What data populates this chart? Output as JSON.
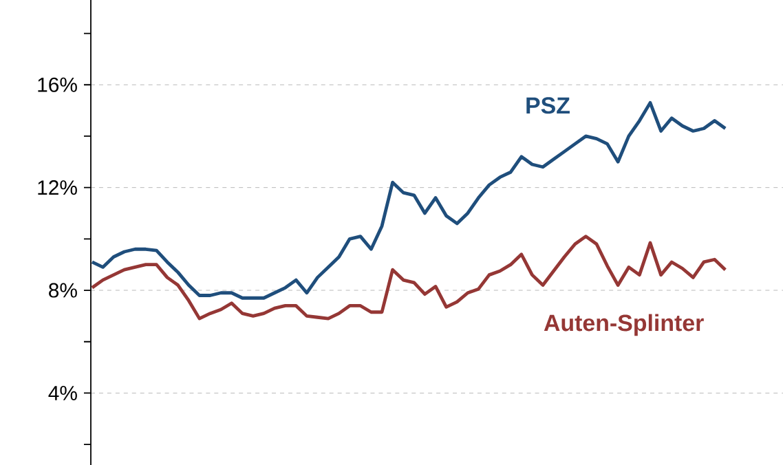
{
  "chart_data": {
    "type": "line",
    "categories": [
      null,
      null,
      null,
      null,
      null,
      null,
      null,
      null,
      null,
      null,
      null,
      null,
      null,
      null,
      null,
      null,
      null,
      null,
      null,
      null,
      null,
      null,
      null,
      null,
      null,
      null,
      null,
      null,
      null,
      null,
      null,
      null,
      null,
      null,
      null,
      null,
      null,
      null,
      null,
      null,
      null,
      null,
      null,
      null,
      null,
      null,
      null,
      null,
      null,
      null,
      null,
      null,
      null,
      null,
      null,
      null,
      null,
      null,
      null,
      null
    ],
    "series": [
      {
        "name": "PSZ",
        "color": "#1f4e7c",
        "values": [
          9.1,
          8.9,
          9.3,
          9.5,
          9.6,
          9.6,
          9.55,
          9.1,
          8.7,
          8.2,
          7.8,
          7.8,
          7.9,
          7.9,
          7.7,
          7.7,
          7.7,
          7.9,
          8.1,
          8.4,
          7.9,
          8.5,
          8.9,
          9.3,
          10.0,
          10.1,
          9.6,
          10.5,
          12.2,
          11.8,
          11.7,
          11.0,
          11.6,
          10.9,
          10.6,
          11.0,
          11.6,
          12.1,
          12.4,
          12.6,
          13.2,
          12.9,
          12.8,
          13.1,
          13.4,
          13.7,
          14.0,
          13.9,
          13.7,
          13.0,
          14.0,
          14.6,
          15.3,
          14.2,
          14.7,
          14.4,
          14.2,
          14.3,
          14.6,
          14.3
        ]
      },
      {
        "name": "Auten-Splinter",
        "color": "#953735",
        "values": [
          8.1,
          8.4,
          8.6,
          8.8,
          8.9,
          9.0,
          9.0,
          8.5,
          8.2,
          7.6,
          6.9,
          7.1,
          7.25,
          7.5,
          7.1,
          7.0,
          7.1,
          7.3,
          7.4,
          7.4,
          7.0,
          6.95,
          6.9,
          7.1,
          7.4,
          7.4,
          7.15,
          7.15,
          8.8,
          8.4,
          8.3,
          7.85,
          8.15,
          7.35,
          7.55,
          7.9,
          8.05,
          8.6,
          8.75,
          9.0,
          9.4,
          8.6,
          8.2,
          8.75,
          9.3,
          9.8,
          10.1,
          9.8,
          8.95,
          8.2,
          8.9,
          8.6,
          9.85,
          8.6,
          9.1,
          8.85,
          8.5,
          9.1,
          9.2,
          8.8
        ]
      }
    ],
    "ylim": [
      1.2,
      19.3
    ],
    "yticks": [
      {
        "value": 2,
        "label": null
      },
      {
        "value": 4,
        "label": "4%"
      },
      {
        "value": 6,
        "label": null
      },
      {
        "value": 8,
        "label": "8%"
      },
      {
        "value": 10,
        "label": null
      },
      {
        "value": 12,
        "label": "12%"
      },
      {
        "value": 14,
        "label": null
      },
      {
        "value": 16,
        "label": "16%"
      },
      {
        "value": 18,
        "label": null
      }
    ],
    "grid": "y",
    "legend": false,
    "marker": "none",
    "line_style": "solid",
    "tick_labels": "y"
  }
}
